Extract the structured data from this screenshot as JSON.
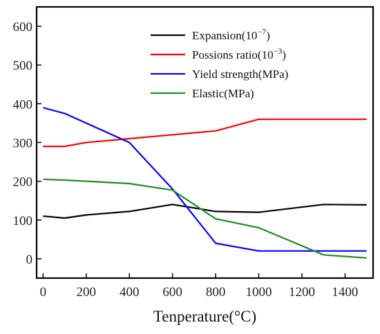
{
  "chart_data": {
    "type": "line",
    "title": "",
    "xlabel": "Tenperature(°C)",
    "ylabel": "",
    "xlim": [
      -30,
      1530
    ],
    "ylim": [
      -50,
      650
    ],
    "x_ticks": [
      0,
      200,
      400,
      600,
      800,
      1000,
      1200,
      1400
    ],
    "y_ticks": [
      0,
      100,
      200,
      300,
      400,
      500,
      600
    ],
    "grid": false,
    "legend_position": "top-right",
    "series": [
      {
        "name": "Expansion(10⁻⁷)",
        "legend_base": "Expansion(10",
        "legend_sup": "−7",
        "legend_end": ")",
        "color": "#000000",
        "x": [
          0,
          100,
          200,
          400,
          600,
          800,
          1000,
          1300,
          1500
        ],
        "values": [
          110,
          105,
          113,
          122,
          140,
          122,
          120,
          140,
          139
        ]
      },
      {
        "name": "Possions ratio(10⁻³)",
        "legend_base": "Possions ratio(10",
        "legend_sup": "−3",
        "legend_end": ")",
        "color": "#ff0000",
        "x": [
          0,
          100,
          200,
          400,
          600,
          800,
          1000,
          1500
        ],
        "values": [
          290,
          290,
          300,
          310,
          320,
          330,
          360,
          360
        ]
      },
      {
        "name": "Yield strength(MPa)",
        "legend_base": "Yield strength(MPa)",
        "legend_sup": "",
        "legend_end": "",
        "color": "#0000ff",
        "x": [
          0,
          100,
          200,
          400,
          600,
          800,
          1000,
          1500
        ],
        "values": [
          390,
          375,
          350,
          300,
          180,
          40,
          20,
          20
        ]
      },
      {
        "name": "Elastic(MPa)",
        "legend_base": "Elastic(MPa)",
        "legend_sup": "",
        "legend_end": "",
        "color": "#228b22",
        "x": [
          0,
          100,
          200,
          400,
          600,
          800,
          1000,
          1300,
          1500
        ],
        "values": [
          205,
          203,
          200,
          194,
          177,
          103,
          80,
          10,
          2
        ]
      }
    ]
  }
}
